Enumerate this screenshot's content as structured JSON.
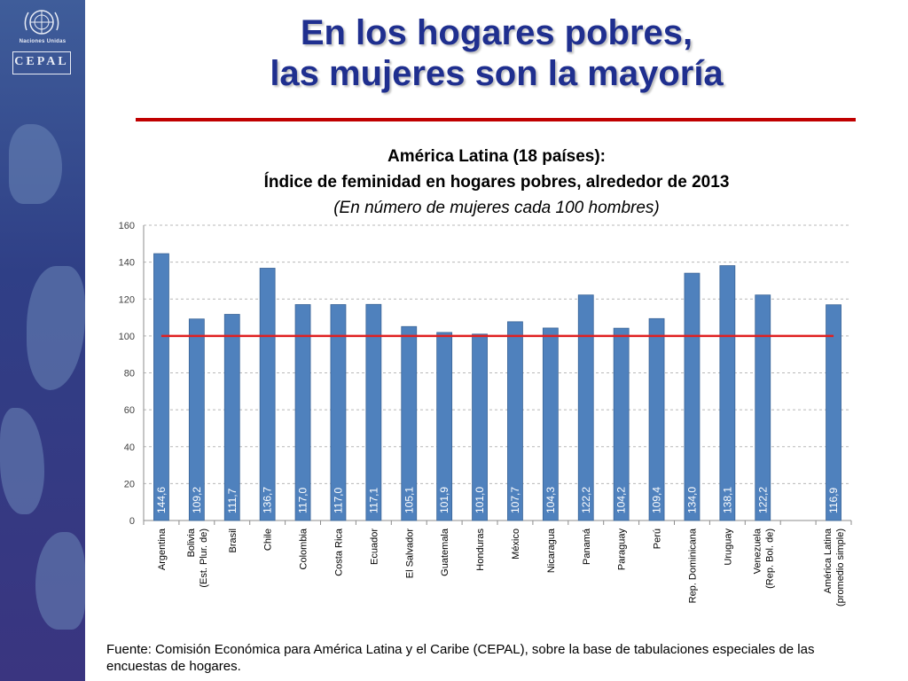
{
  "slide": {
    "title_line1": "En los hogares pobres,",
    "title_line2": "las mujeres son la mayoría",
    "logo_un_text": "Naciones Unidas",
    "logo_cepal_text": "CEPAL",
    "source": "Fuente: Comisión Económica para América Latina y el Caribe (CEPAL), sobre la base de tabulaciones especiales de las encuestas de hogares."
  },
  "colors": {
    "bar": "#4f81bd",
    "bar_edge": "#3a6497",
    "reference_line": "#e02020",
    "title": "#1f2f8f",
    "rule": "#c00000"
  },
  "chart_data": {
    "type": "bar",
    "title": "América Latina (18 países):",
    "subtitle": "Índice de feminidad en hogares pobres, alrededor de 2013",
    "unit_note": "(En número de mujeres cada 100 hombres)",
    "ylim": [
      0,
      160
    ],
    "yticks": [
      0,
      20,
      40,
      60,
      80,
      100,
      120,
      140,
      160
    ],
    "grid": true,
    "reference_value": 100,
    "categories": [
      [
        "Argentina"
      ],
      [
        "Bolivia",
        "(Est. Plur. de)"
      ],
      [
        "Brasil"
      ],
      [
        "Chile"
      ],
      [
        "Colombia"
      ],
      [
        "Costa Rica"
      ],
      [
        "Ecuador"
      ],
      [
        "El Salvador"
      ],
      [
        "Guatemala"
      ],
      [
        "Honduras"
      ],
      [
        "México"
      ],
      [
        "Nicaragua"
      ],
      [
        "Panamá"
      ],
      [
        "Paraguay"
      ],
      [
        "Perú"
      ],
      [
        "Rep. Dominicana"
      ],
      [
        "Uruguay"
      ],
      [
        "Venezuela",
        "(Rep. Bol. de)"
      ],
      [],
      [
        "América Latina",
        "(promedio simple)"
      ]
    ],
    "values": [
      144.6,
      109.2,
      111.7,
      136.7,
      117.0,
      117.0,
      117.1,
      105.1,
      101.9,
      101.0,
      107.7,
      104.3,
      122.2,
      104.2,
      109.4,
      134.0,
      138.1,
      122.2,
      null,
      116.9
    ],
    "value_labels": [
      "144,6",
      "109,2",
      "111,7",
      "136,7",
      "117,0",
      "117,0",
      "117,1",
      "105,1",
      "101,9",
      "101,0",
      "107,7",
      "104,3",
      "122,2",
      "104,2",
      "109,4",
      "134,0",
      "138,1",
      "122,2",
      "",
      "116,9"
    ]
  }
}
